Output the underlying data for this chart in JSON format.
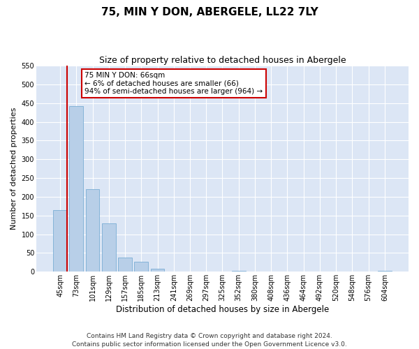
{
  "title": "75, MIN Y DON, ABERGELE, LL22 7LY",
  "subtitle": "Size of property relative to detached houses in Abergele",
  "xlabel": "Distribution of detached houses by size in Abergele",
  "ylabel": "Number of detached properties",
  "bins": [
    "45sqm",
    "73sqm",
    "101sqm",
    "129sqm",
    "157sqm",
    "185sqm",
    "213sqm",
    "241sqm",
    "269sqm",
    "297sqm",
    "325sqm",
    "352sqm",
    "380sqm",
    "408sqm",
    "436sqm",
    "464sqm",
    "492sqm",
    "520sqm",
    "548sqm",
    "576sqm",
    "604sqm"
  ],
  "values": [
    165,
    443,
    220,
    130,
    37,
    26,
    8,
    0,
    0,
    0,
    0,
    2,
    0,
    0,
    0,
    0,
    0,
    0,
    0,
    0,
    2
  ],
  "bar_color": "#b8cfe8",
  "bar_edge_color": "#7aadd4",
  "background_color": "#dce6f5",
  "grid_color": "#ffffff",
  "ylim": [
    0,
    550
  ],
  "yticks": [
    0,
    50,
    100,
    150,
    200,
    250,
    300,
    350,
    400,
    450,
    500,
    550
  ],
  "marker_line_color": "#cc0000",
  "annotation_title": "75 MIN Y DON: 66sqm",
  "annotation_line1": "← 6% of detached houses are smaller (66)",
  "annotation_line2": "94% of semi-detached houses are larger (964) →",
  "annotation_box_color": "#cc0000",
  "footer_line1": "Contains HM Land Registry data © Crown copyright and database right 2024.",
  "footer_line2": "Contains public sector information licensed under the Open Government Licence v3.0.",
  "title_fontsize": 11,
  "subtitle_fontsize": 9,
  "xlabel_fontsize": 8.5,
  "ylabel_fontsize": 8,
  "tick_fontsize": 7,
  "footer_fontsize": 6.5,
  "annotation_fontsize": 7.5
}
